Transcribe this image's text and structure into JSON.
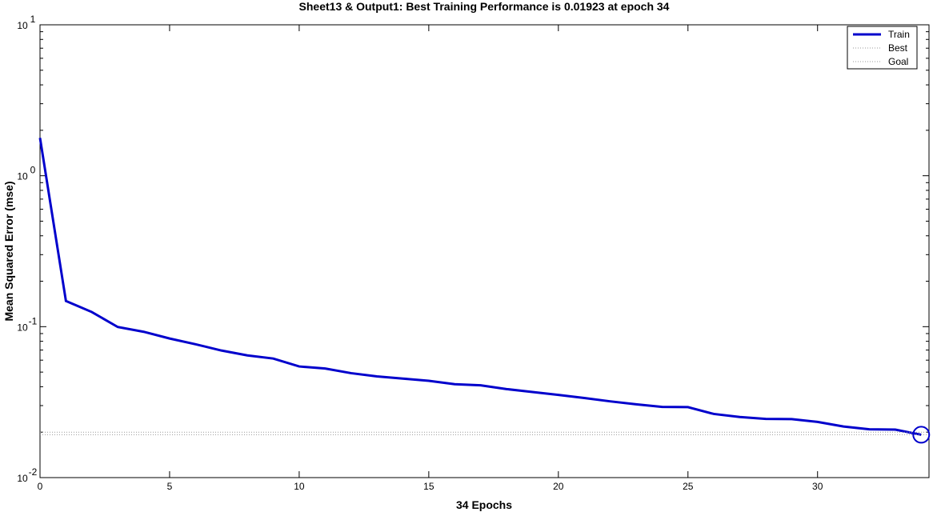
{
  "chart_data": {
    "type": "line",
    "title": "Sheet13 & Output1: Best Training Performance is 0.01923 at epoch 34",
    "xlabel": "34 Epochs",
    "ylabel": "Mean Squared Error  (mse)",
    "xlim": [
      0,
      34.3
    ],
    "ylim": [
      0.01,
      10
    ],
    "yscale": "log",
    "x_ticks": [
      0,
      5,
      10,
      15,
      20,
      25,
      30
    ],
    "y_ticks": [
      {
        "value": 10,
        "base": "10",
        "exp": "1"
      },
      {
        "value": 1,
        "base": "10",
        "exp": "0"
      },
      {
        "value": 0.1,
        "base": "10",
        "exp": "-1"
      },
      {
        "value": 0.01,
        "base": "10",
        "exp": "-2"
      }
    ],
    "grid": false,
    "legend_position": "top-right",
    "series": [
      {
        "name": "Train",
        "color": "#0000cc",
        "x": [
          0,
          1,
          2,
          3,
          4,
          5,
          6,
          7,
          8,
          9,
          10,
          11,
          12,
          13,
          14,
          15,
          16,
          17,
          18,
          19,
          20,
          21,
          22,
          23,
          24,
          25,
          26,
          27,
          28,
          29,
          30,
          31,
          32,
          33,
          34
        ],
        "values": [
          1.78,
          0.148,
          0.125,
          0.0995,
          0.0925,
          0.0835,
          0.0765,
          0.0695,
          0.0645,
          0.0615,
          0.0545,
          0.0528,
          0.0492,
          0.0468,
          0.0453,
          0.0438,
          0.0416,
          0.0409,
          0.0386,
          0.0369,
          0.0353,
          0.0337,
          0.032,
          0.0306,
          0.0294,
          0.0293,
          0.0264,
          0.0252,
          0.0245,
          0.0244,
          0.0234,
          0.0218,
          0.0209,
          0.0208,
          0.01923
        ]
      },
      {
        "name": "Best",
        "color": "#999999",
        "x": [
          0,
          34.3
        ],
        "values": [
          0.01923,
          0.01923
        ]
      },
      {
        "name": "Goal",
        "color": "#999999",
        "x": [
          0,
          34.3
        ],
        "values": [
          0.02,
          0.02
        ]
      }
    ],
    "best_marker": {
      "x": 34,
      "y": 0.01923,
      "color": "#0000cc"
    }
  }
}
